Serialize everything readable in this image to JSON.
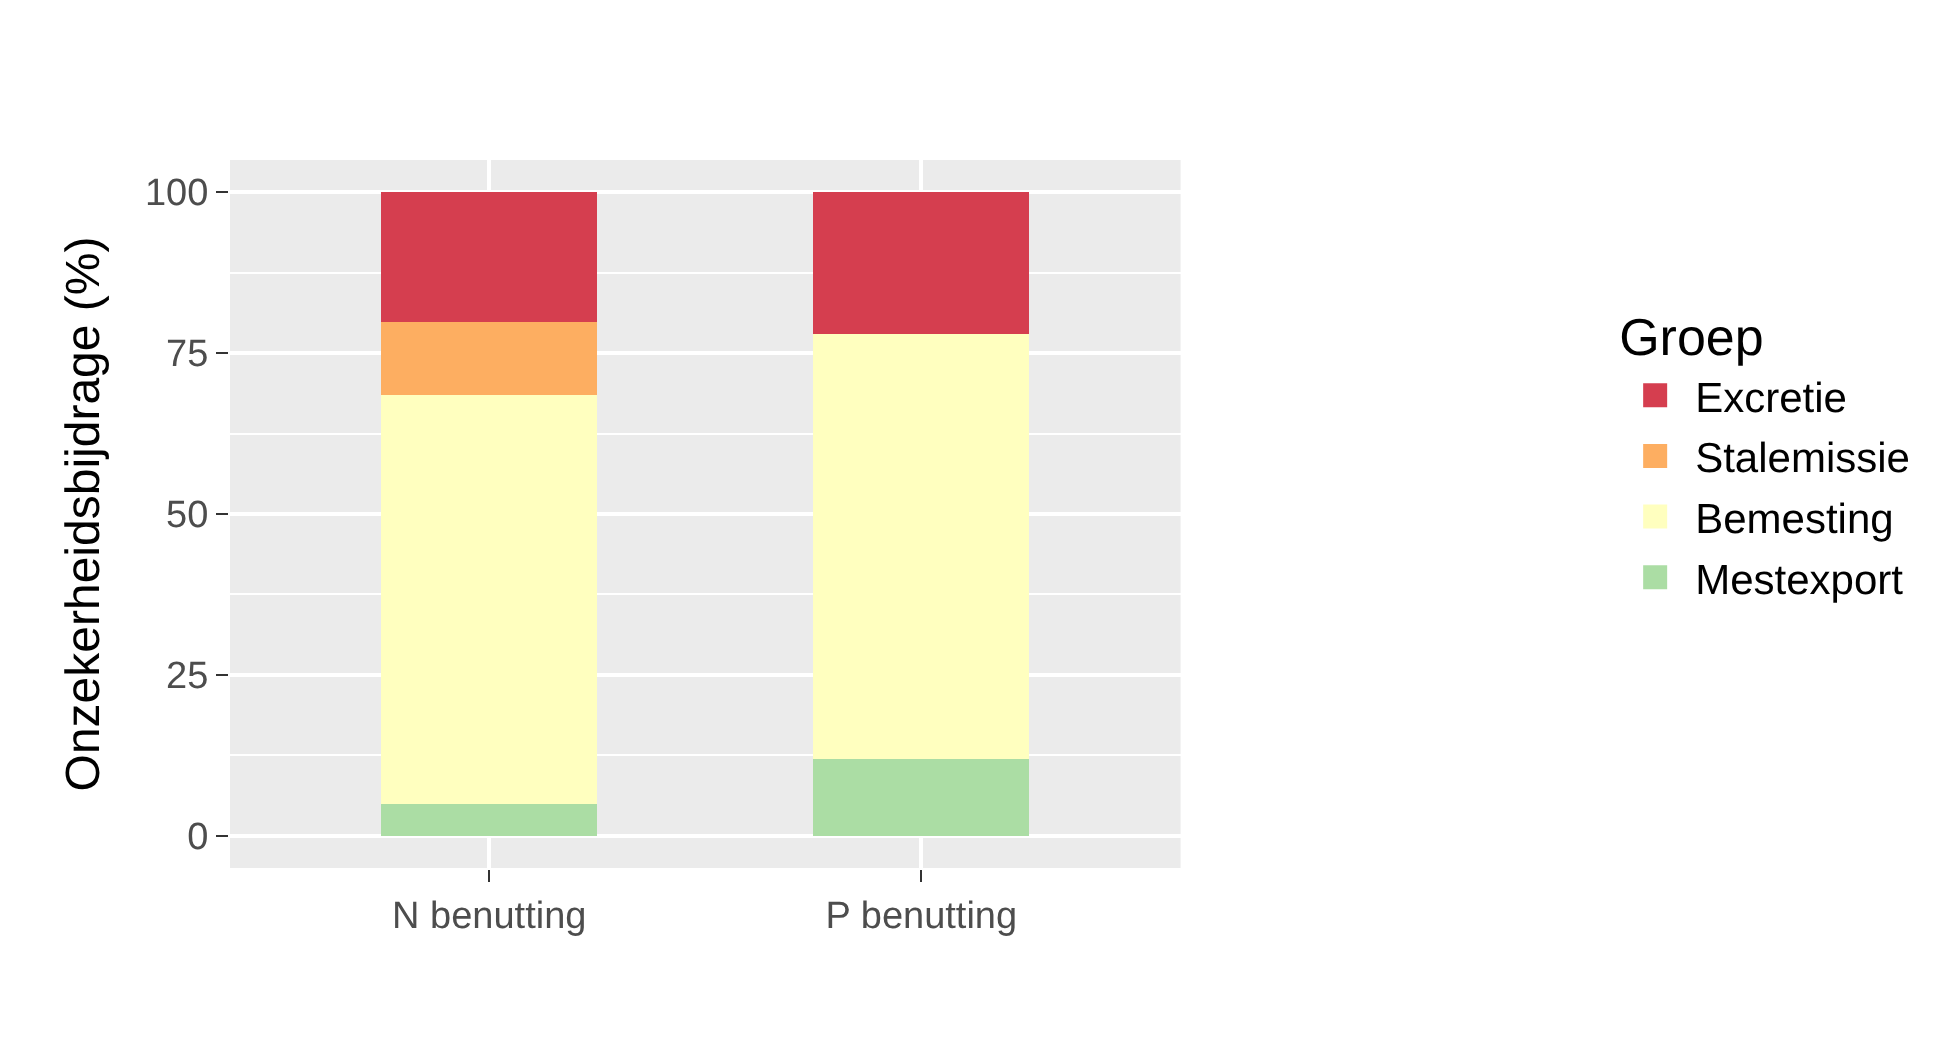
{
  "chart_data": {
    "type": "bar",
    "stacked": true,
    "ylabel": "Onzekerheidsbijdrage (%)",
    "legend_title": "Groep",
    "categories": [
      "N benutting",
      "P benutting"
    ],
    "series": [
      {
        "name": "Mestexport",
        "color": "#abdda4",
        "values": [
          5,
          12
        ]
      },
      {
        "name": "Bemesting",
        "color": "#ffffbf",
        "values": [
          63.5,
          66
        ]
      },
      {
        "name": "Stalemissie",
        "color": "#fdae61",
        "values": [
          11.3,
          0
        ]
      },
      {
        "name": "Excretie",
        "color": "#d53e4f",
        "values": [
          20.2,
          22
        ]
      }
    ],
    "ylim": [
      -5,
      105
    ],
    "yticks": [
      0,
      25,
      50,
      75,
      100
    ],
    "grid": true,
    "legend": "right"
  }
}
